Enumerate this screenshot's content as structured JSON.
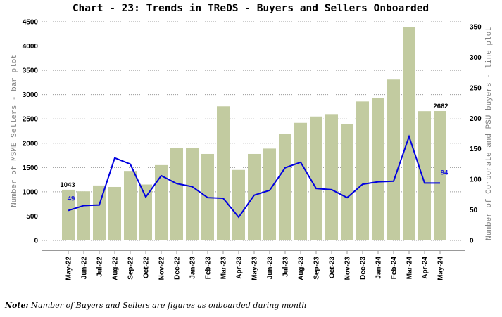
{
  "chart_data": {
    "type": "bar+line",
    "title": "Chart - 23: Trends in TReDS - Buyers and Sellers Onboarded",
    "categories": [
      "May-22",
      "Jun-22",
      "Jul-22",
      "Aug-22",
      "Sep-22",
      "Oct-22",
      "Nov-22",
      "Dec-22",
      "Jan-23",
      "Feb-23",
      "Mar-23",
      "Apr-23",
      "May-23",
      "Jun-23",
      "Jul-23",
      "Aug-23",
      "Sep-23",
      "Oct-23",
      "Nov-23",
      "Dec-23",
      "Jan-24",
      "Feb-24",
      "Mar-24",
      "Apr-24",
      "May-24"
    ],
    "series": [
      {
        "name": "Number of MSME Sellers",
        "type": "bar",
        "axis": "left",
        "color": "#c2cba0",
        "values": [
          1043,
          1010,
          1130,
          1100,
          1430,
          1150,
          1550,
          1910,
          1910,
          1780,
          2760,
          1450,
          1780,
          1890,
          2190,
          2420,
          2550,
          2600,
          2400,
          2860,
          2930,
          3310,
          4390,
          2660,
          2662
        ]
      },
      {
        "name": "Number of Corporate and PSU buyers",
        "type": "line",
        "axis": "right",
        "color": "#0000e0",
        "values": [
          49,
          57,
          58,
          135,
          125,
          71,
          106,
          93,
          88,
          70,
          69,
          38,
          74,
          82,
          119,
          128,
          85,
          83,
          70,
          92,
          96,
          97,
          170,
          94,
          94
        ]
      }
    ],
    "data_labels": {
      "bar_first": "1043",
      "bar_last": "2662",
      "line_first": "49",
      "line_last": "94"
    },
    "ylabel_left": "Number of MSME Sellers - bar plot",
    "ylabel_right": "Number of Corporate and PSU buyers - line plot",
    "xlabel": "",
    "ylim_left": [
      0,
      4500
    ],
    "ylim_right": [
      0,
      358
    ],
    "yticks_left": [
      "0",
      "500",
      "1000",
      "1500",
      "2000",
      "2500",
      "3000",
      "3500",
      "4000",
      "4500"
    ],
    "yticks_right": [
      "0",
      "50",
      "100",
      "150",
      "200",
      "250",
      "300",
      "350"
    ],
    "grid": "horizontal dotted",
    "legend": "none"
  },
  "note": {
    "prefix": "Note:",
    "text": " Number of Buyers and Sellers are figures as onboarded during month"
  }
}
